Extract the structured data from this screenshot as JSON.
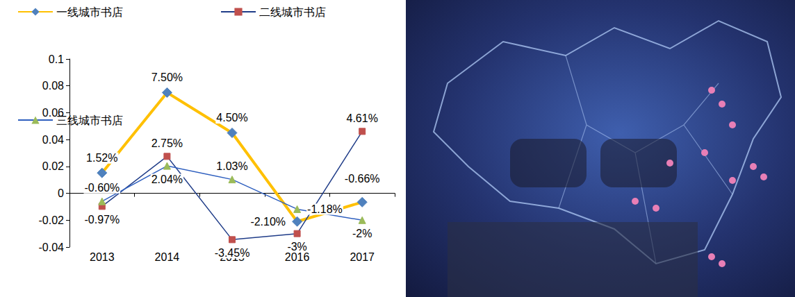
{
  "chart_data": {
    "type": "line",
    "categories": [
      "2013",
      "2014",
      "2015",
      "2016",
      "2017"
    ],
    "series": [
      {
        "name": "一线城市书店",
        "color": "#FFC000",
        "marker": "diamond",
        "values": [
          0.0152,
          0.075,
          0.045,
          -0.021,
          -0.0066
        ],
        "value_labels": [
          "1.52%",
          "7.50%",
          "4.50%",
          "-2.10%",
          "-0.66%"
        ]
      },
      {
        "name": "二线城市书店",
        "color": "#1F3C88",
        "marker": "square",
        "values": [
          -0.0097,
          0.0275,
          -0.0345,
          -0.03,
          0.0461
        ],
        "value_labels": [
          "-0.97%",
          "2.75%",
          "-3.45%",
          "-3%",
          "4.61%"
        ]
      },
      {
        "name": "三线城市书店",
        "color": "#2E5FBF",
        "marker": "triangle",
        "values": [
          -0.006,
          0.0204,
          0.0103,
          -0.0118,
          -0.02
        ],
        "value_labels": [
          "-0.60%",
          "2.04%",
          "1.03%",
          "-1.18%",
          "-2%"
        ]
      }
    ],
    "ylim": [
      -0.04,
      0.1
    ],
    "yticks": [
      -0.04,
      -0.02,
      0,
      0.02,
      0.04,
      0.06,
      0.08,
      0.1
    ],
    "grid": false,
    "legend": "top-left",
    "data_labels": true
  }
}
